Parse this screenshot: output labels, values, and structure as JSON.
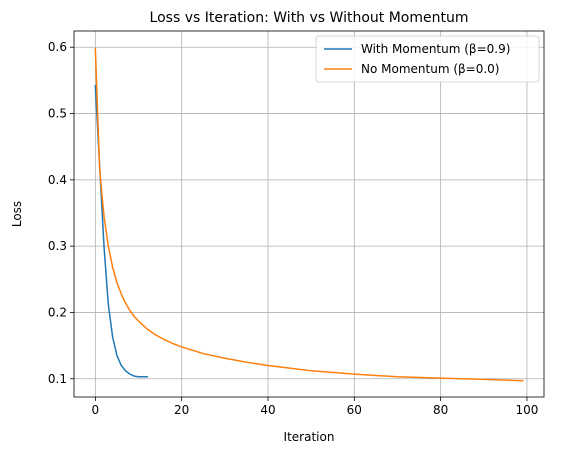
{
  "chart_data": {
    "type": "line",
    "title": "Loss vs Iteration: With vs Without Momentum",
    "xlabel": "Iteration",
    "ylabel": "Loss",
    "xlim": [
      -4.95,
      103.95
    ],
    "ylim": [
      0.0725,
      0.6245
    ],
    "xticks": [
      0,
      20,
      40,
      60,
      80,
      100
    ],
    "yticks": [
      0.1,
      0.2,
      0.3,
      0.4,
      0.5,
      0.6
    ],
    "xtick_labels": [
      "0",
      "20",
      "40",
      "60",
      "80",
      "100"
    ],
    "ytick_labels": [
      "0.1",
      "0.2",
      "0.3",
      "0.4",
      "0.5",
      "0.6"
    ],
    "grid": true,
    "legend_position": "top-right",
    "series": [
      {
        "name": "With Momentum (β=0.9)",
        "color": "#1f77b4",
        "x": [
          0,
          1,
          2,
          3,
          4,
          5,
          6,
          7,
          8,
          9,
          10,
          11,
          12
        ],
        "y": [
          0.542,
          0.42,
          0.3,
          0.212,
          0.163,
          0.135,
          0.12,
          0.112,
          0.107,
          0.104,
          0.103,
          0.103,
          0.103
        ]
      },
      {
        "name": "No Momentum (β=0.0)",
        "color": "#ff7f0e",
        "x": [
          0,
          1,
          2,
          3,
          4,
          5,
          6,
          7,
          8,
          9,
          10,
          12,
          14,
          16,
          18,
          20,
          25,
          30,
          35,
          40,
          45,
          50,
          60,
          70,
          80,
          90,
          99
        ],
        "y": [
          0.598,
          0.415,
          0.345,
          0.3,
          0.268,
          0.245,
          0.228,
          0.214,
          0.203,
          0.194,
          0.187,
          0.175,
          0.166,
          0.159,
          0.153,
          0.148,
          0.138,
          0.131,
          0.125,
          0.12,
          0.116,
          0.112,
          0.107,
          0.103,
          0.101,
          0.099,
          0.097
        ]
      }
    ]
  }
}
